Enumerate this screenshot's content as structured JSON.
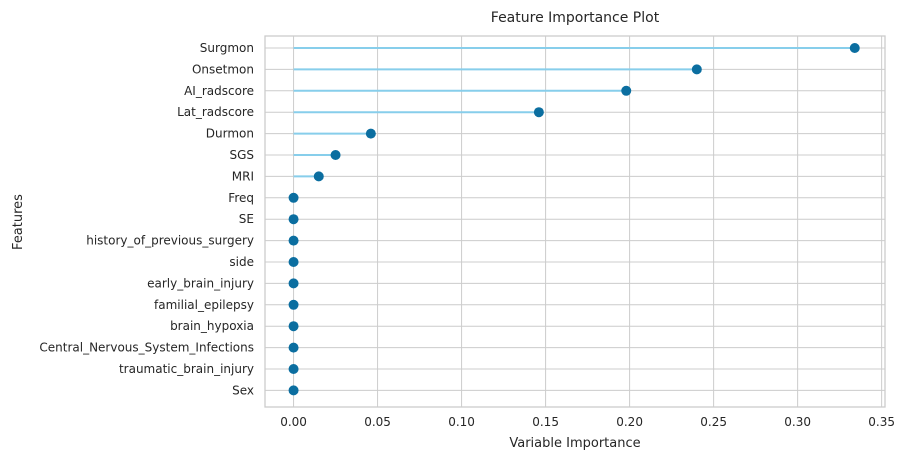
{
  "chart_data": {
    "type": "lollipop",
    "orientation": "horizontal",
    "title": "Feature Importance Plot",
    "xlabel": "Variable Importance",
    "ylabel": "Features",
    "xlim": [
      -0.017,
      0.352
    ],
    "xticks": [
      0.0,
      0.05,
      0.1,
      0.15,
      0.2,
      0.25,
      0.3,
      0.35
    ],
    "xtick_labels": [
      "0.00",
      "0.05",
      "0.10",
      "0.15",
      "0.20",
      "0.25",
      "0.30",
      "0.35"
    ],
    "grid": true,
    "colors": {
      "stem": "#87ceeb",
      "marker": "#0b6ea0",
      "grid": "#cccccc"
    },
    "categories": [
      "Surgmon",
      "Onsetmon",
      "AI_radscore",
      "Lat_radscore",
      "Durmon",
      "SGS",
      "MRI",
      "Freq",
      "SE",
      "history_of_previous_surgery",
      "side",
      "early_brain_injury",
      "familial_epilepsy",
      "brain_hypoxia",
      "Central_Nervous_System_Infections",
      "traumatic_brain_injury",
      "Sex"
    ],
    "values": [
      0.334,
      0.24,
      0.198,
      0.146,
      0.046,
      0.025,
      0.015,
      0,
      0,
      0,
      0,
      0,
      0,
      0,
      0,
      0,
      0
    ]
  }
}
